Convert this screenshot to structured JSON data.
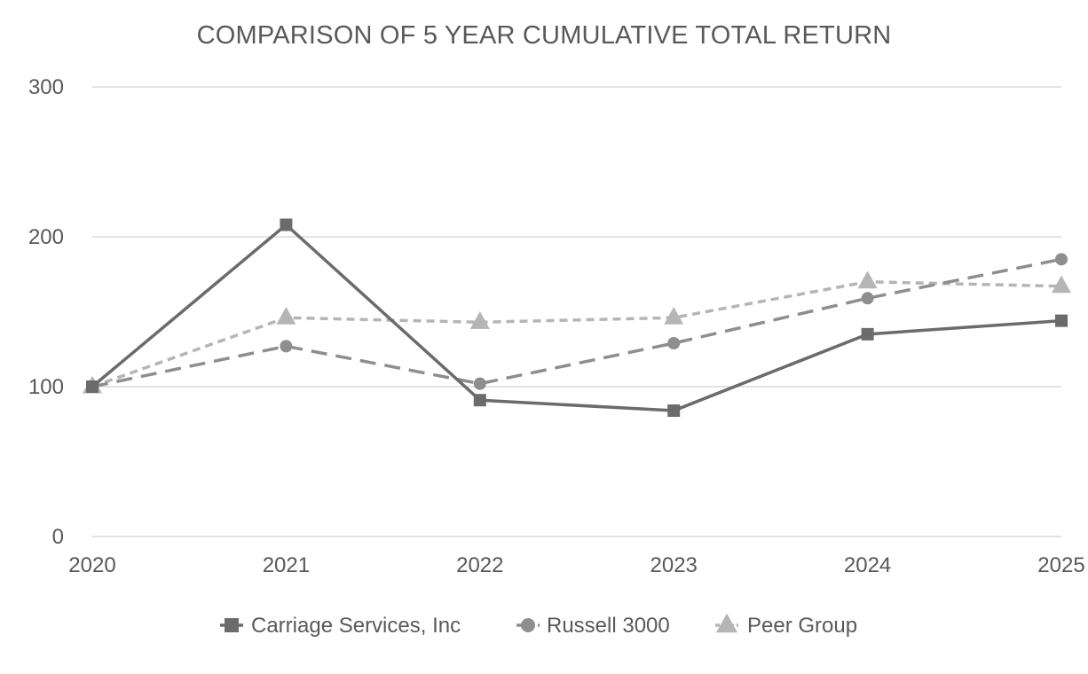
{
  "chart_data": {
    "type": "line",
    "title": "COMPARISON OF 5 YEAR CUMULATIVE TOTAL RETURN",
    "xlabel": "",
    "ylabel": "",
    "x": [
      "2020",
      "2021",
      "2022",
      "2023",
      "2024",
      "2025"
    ],
    "ylim": [
      0,
      300
    ],
    "yticks": [
      "0",
      "100",
      "200",
      "300"
    ],
    "grid": true,
    "legend_position": "bottom",
    "series": [
      {
        "name": "Carriage Services, Inc",
        "values": [
          100,
          208,
          91,
          84,
          135,
          144
        ],
        "color": "#6b6b6b",
        "marker": "square",
        "dash": "solid"
      },
      {
        "name": "Russell 3000",
        "values": [
          100,
          127,
          102,
          129,
          159,
          185
        ],
        "color": "#8e8e8e",
        "marker": "circle",
        "dash": "dashed"
      },
      {
        "name": "Peer Group",
        "values": [
          100,
          146,
          143,
          146,
          170,
          167
        ],
        "color": "#b5b5b5",
        "marker": "triangle",
        "dash": "dotted"
      }
    ]
  }
}
